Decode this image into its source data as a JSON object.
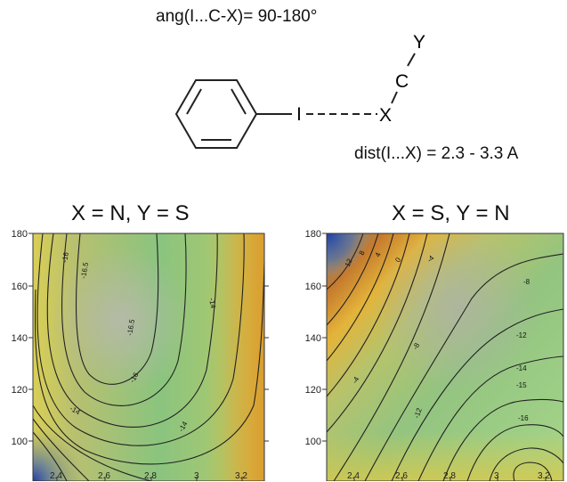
{
  "header": {
    "angle_label": "ang(I...C-X)= 90-180°",
    "distance_label": "dist(I...X) = 2.3 - 3.3 A"
  },
  "scheme": {
    "atom_I": "I",
    "atom_X": "X",
    "atom_C": "C",
    "atom_Y": "Y",
    "ring_icon": "benzene-ring-icon"
  },
  "panels": [
    {
      "title": "X = N, Y = S",
      "y_ticks": [
        "180",
        "160",
        "140",
        "120",
        "100"
      ],
      "x_ticks": [
        "2.4",
        "2.6",
        "2.8",
        "3",
        "3.2"
      ],
      "contour_labels": [
        "-16",
        "-16.5",
        "-16.5",
        "-14",
        "-16",
        "-14",
        "-14"
      ]
    },
    {
      "title": "X = S, Y = N",
      "y_ticks": [
        "180",
        "160",
        "140",
        "120",
        "100"
      ],
      "x_ticks": [
        "2.4",
        "2.6",
        "2.8",
        "3",
        "3.2"
      ],
      "contour_labels": [
        "12",
        "8",
        "4",
        "0",
        "-4",
        "-8",
        "-4",
        "-8",
        "-12",
        "-12",
        "-14",
        "-15",
        "-16"
      ]
    }
  ],
  "colors": {
    "yellow": "#e8c23a",
    "orange": "#c8782a",
    "green": "#7fc07a",
    "gray": "#a8a8a0",
    "blue": "#2a4aa8"
  }
}
